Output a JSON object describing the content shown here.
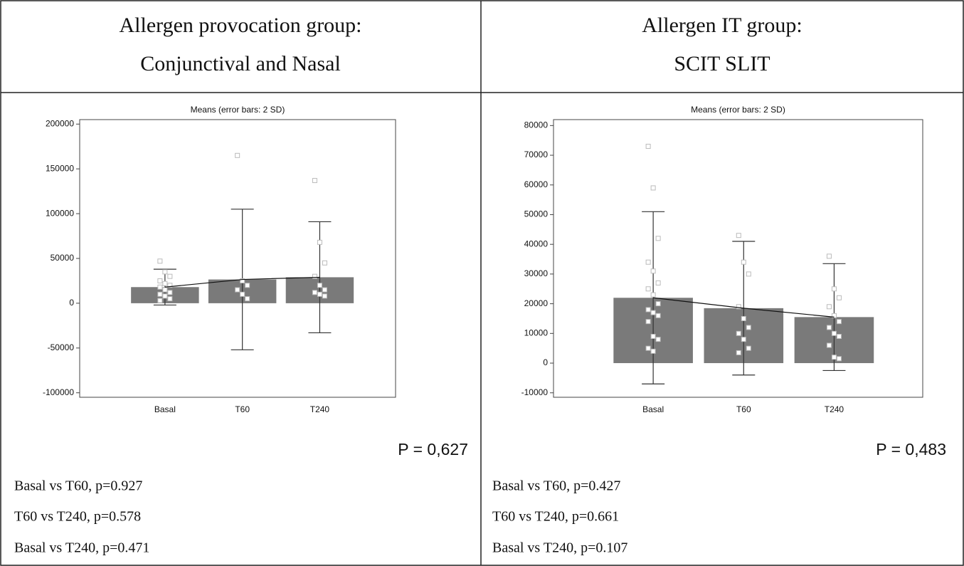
{
  "table": {
    "headers": [
      [
        "Allergen provocation group:",
        "Conjunctival and Nasal"
      ],
      [
        "Allergen IT group:",
        "SCIT  SLIT"
      ]
    ]
  },
  "chart_data": [
    {
      "type": "bar",
      "title": "Means  (error bars: 2 SD)",
      "categories": [
        "Basal",
        "T60",
        "T240"
      ],
      "values": [
        18000,
        26500,
        29000
      ],
      "errors": [
        20000,
        78500,
        62000
      ],
      "color": "#7a7a7a",
      "points": [
        [
          47000,
          35000,
          30000,
          25000,
          22000,
          20000,
          18000,
          15000,
          12000,
          10000,
          8000,
          5000,
          3000
        ],
        [
          165000,
          25000,
          20000,
          15000,
          10000,
          5000
        ],
        [
          137000,
          68000,
          45000,
          30000,
          20000,
          15000,
          12000,
          10000,
          8000
        ]
      ],
      "ylim": [
        -105000,
        205000
      ],
      "yticks": [
        -100000,
        -50000,
        0,
        50000,
        100000,
        150000,
        200000
      ]
    },
    {
      "type": "bar",
      "title": "Means  (error bars: 2 SD)",
      "categories": [
        "Basal",
        "T60",
        "T240"
      ],
      "values": [
        22000,
        18500,
        15500
      ],
      "errors": [
        29000,
        22500,
        18000
      ],
      "color": "#7a7a7a",
      "points": [
        [
          73000,
          59000,
          42000,
          34000,
          31000,
          27000,
          25000,
          23000,
          20000,
          18000,
          17000,
          16000,
          14000,
          9000,
          8000,
          5000,
          4000
        ],
        [
          43000,
          34000,
          30000,
          19000,
          15000,
          12000,
          10000,
          8000,
          5000,
          3500
        ],
        [
          36000,
          25000,
          22000,
          19000,
          16000,
          14000,
          12000,
          10000,
          9000,
          6000,
          2000,
          1500
        ]
      ],
      "ylim": [
        -11500,
        82000
      ],
      "yticks": [
        -10000,
        0,
        10000,
        20000,
        30000,
        40000,
        50000,
        60000,
        70000,
        80000
      ]
    }
  ],
  "results": [
    {
      "p_value": "P = 0,627",
      "comparisons": [
        "Basal vs T60, p=0.927",
        "T60 vs T240, p=0.578",
        "Basal vs T240, p=0.471"
      ]
    },
    {
      "p_value": "P = 0,483",
      "comparisons": [
        "Basal vs T60, p=0.427",
        "T60 vs T240, p=0.661",
        "Basal vs T240, p=0.107"
      ]
    }
  ]
}
